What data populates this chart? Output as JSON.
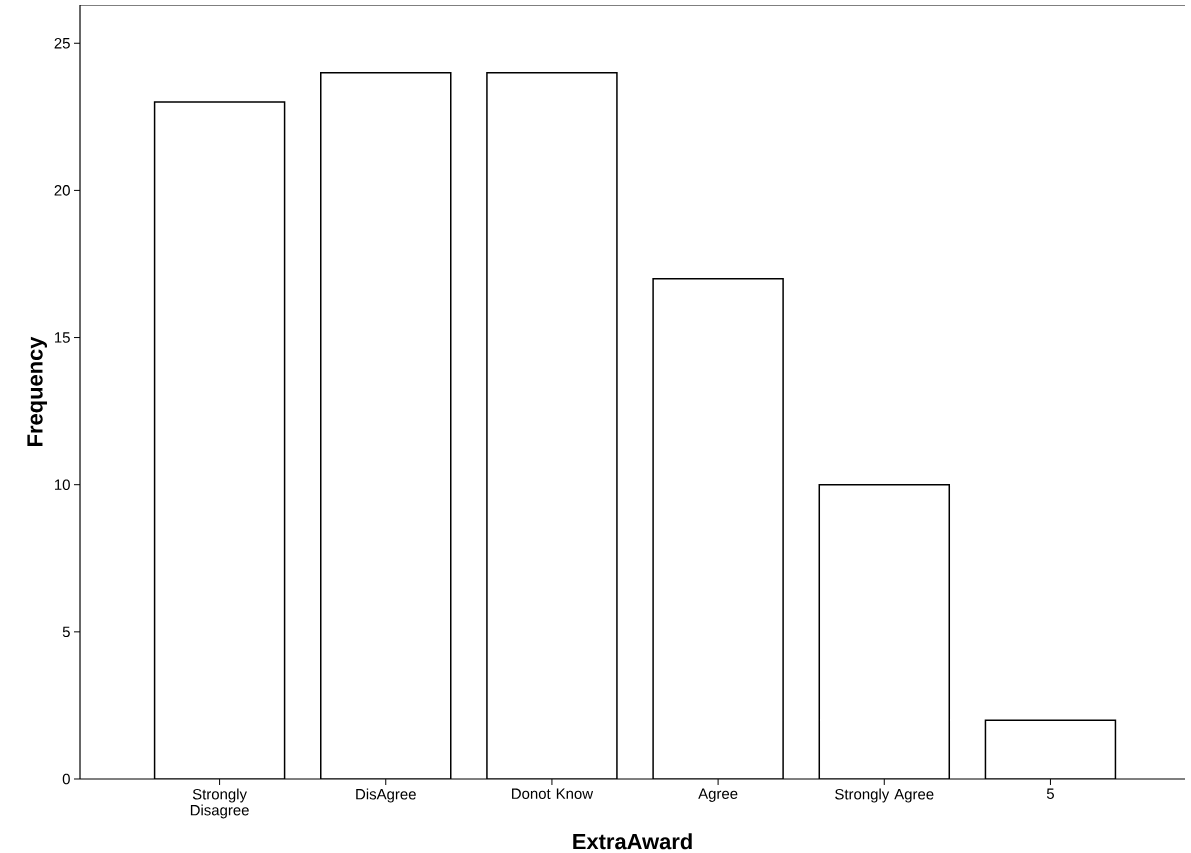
{
  "chart_data": {
    "type": "bar",
    "categories": [
      "Strongly Disagree",
      "DisAgree",
      "Donot Know",
      "Agree",
      "Strongly Agree",
      "5"
    ],
    "values": [
      23,
      24,
      24,
      17,
      10,
      2
    ],
    "color": "#ffffff",
    "xlabel": "ExtraAward",
    "ylabel": "Frequency",
    "ylim": [
      0,
      26.3
    ],
    "yticks": [
      0,
      5,
      10,
      15,
      20,
      25
    ],
    "grid": false
  }
}
